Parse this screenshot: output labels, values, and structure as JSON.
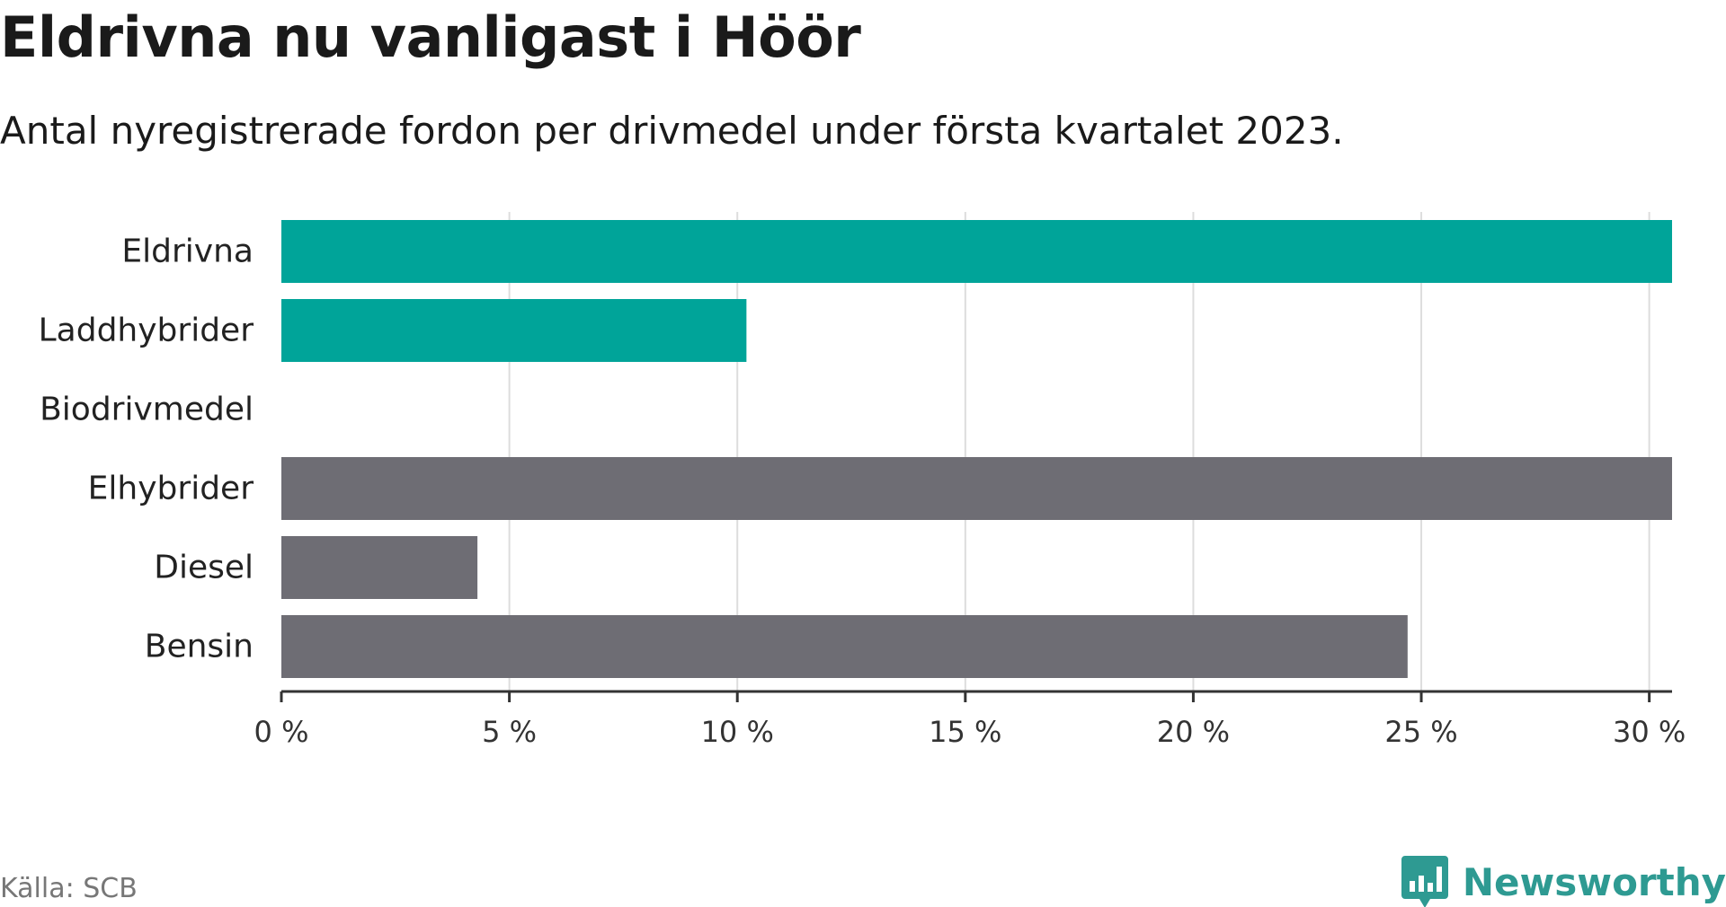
{
  "header": {
    "title": "Eldrivna nu vanligast i Höör",
    "subtitle": "Antal nyregistrerade fordon per drivmedel under första kvartalet 2023."
  },
  "footer": {
    "source": "Källa: SCB",
    "brand": "Newsworthy",
    "brand_icon": "bar-chart-speech-bubble-icon"
  },
  "colors": {
    "highlight": "#00a499",
    "neutral": "#6e6d74",
    "grid": "#dddddd",
    "axis": "#333333",
    "brand": "#2e9a92"
  },
  "chart_data": {
    "type": "bar",
    "orientation": "horizontal",
    "categories": [
      "Eldrivna",
      "Laddhybrider",
      "Biodrivmedel",
      "Elhybrider",
      "Diesel",
      "Bensin"
    ],
    "values": [
      30.5,
      10.2,
      0,
      30.5,
      4.3,
      24.7
    ],
    "highlighted": [
      true,
      true,
      false,
      false,
      false,
      false
    ],
    "xlim": [
      0,
      30.5
    ],
    "xticks": [
      0,
      5,
      10,
      15,
      20,
      25,
      30
    ],
    "xtick_labels": [
      "0 %",
      "5 %",
      "10 %",
      "15 %",
      "20 %",
      "25 %",
      "30 %"
    ],
    "grid": true
  }
}
